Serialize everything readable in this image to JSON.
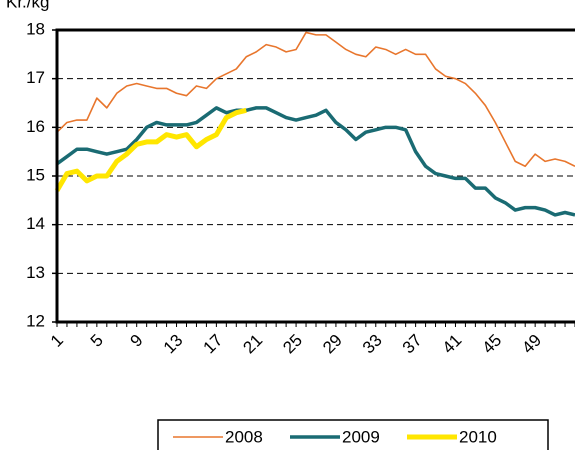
{
  "chart_data": {
    "type": "line",
    "ylabel": "Kr./kg",
    "categories": [
      "1",
      null,
      null,
      null,
      "5",
      null,
      null,
      null,
      "9",
      null,
      null,
      null,
      "13",
      null,
      null,
      null,
      "17",
      null,
      null,
      null,
      "21",
      null,
      null,
      null,
      "25",
      null,
      null,
      null,
      "29",
      null,
      null,
      null,
      "33",
      null,
      null,
      null,
      "37",
      null,
      null,
      null,
      "41",
      null,
      null,
      null,
      "45",
      null,
      null,
      null,
      "49",
      null,
      null,
      null,
      null
    ],
    "series": [
      {
        "name": "2008",
        "color": "#e8762d",
        "width": 1.6,
        "values": [
          15.9,
          16.1,
          16.15,
          16.15,
          16.6,
          16.4,
          16.7,
          16.85,
          16.9,
          16.85,
          16.8,
          16.8,
          16.7,
          16.65,
          16.85,
          16.8,
          17.0,
          17.1,
          17.2,
          17.45,
          17.55,
          17.7,
          17.65,
          17.55,
          17.6,
          17.95,
          17.9,
          17.9,
          17.75,
          17.6,
          17.5,
          17.45,
          17.65,
          17.6,
          17.5,
          17.6,
          17.5,
          17.5,
          17.2,
          17.05,
          17.0,
          16.9,
          16.7,
          16.45,
          16.1,
          15.7,
          15.3,
          15.2,
          15.45,
          15.3,
          15.35,
          15.3,
          15.2
        ]
      },
      {
        "name": "2009",
        "color": "#1a6b73",
        "width": 3.5,
        "values": [
          15.25,
          15.4,
          15.55,
          15.55,
          15.5,
          15.45,
          15.5,
          15.55,
          15.75,
          16.0,
          16.1,
          16.05,
          16.05,
          16.05,
          16.1,
          16.25,
          16.4,
          16.3,
          16.35,
          16.35,
          16.4,
          16.4,
          16.3,
          16.2,
          16.15,
          16.2,
          16.25,
          16.35,
          16.1,
          15.95,
          15.75,
          15.9,
          15.95,
          16.0,
          16.0,
          15.95,
          15.5,
          15.2,
          15.05,
          15.0,
          14.95,
          14.95,
          14.75,
          14.75,
          14.55,
          14.45,
          14.3,
          14.35,
          14.35,
          14.3,
          14.2,
          14.25,
          14.2
        ]
      },
      {
        "name": "2010",
        "color": "#ffe600",
        "width": 5,
        "values": [
          14.7,
          15.05,
          15.1,
          14.9,
          15.0,
          15.0,
          15.3,
          15.45,
          15.65,
          15.7,
          15.7,
          15.85,
          15.8,
          15.85,
          15.6,
          15.75,
          15.85,
          16.2,
          16.3,
          16.35,
          null,
          null,
          null,
          null,
          null,
          null,
          null,
          null,
          null,
          null,
          null,
          null,
          null,
          null,
          null,
          null,
          null,
          null,
          null,
          null,
          null,
          null,
          null,
          null,
          null,
          null,
          null,
          null,
          null,
          null,
          null,
          null,
          null
        ]
      }
    ],
    "ylim": [
      12,
      18
    ],
    "yticks": [
      12,
      13,
      14,
      15,
      16,
      17,
      18
    ],
    "grid": true
  }
}
